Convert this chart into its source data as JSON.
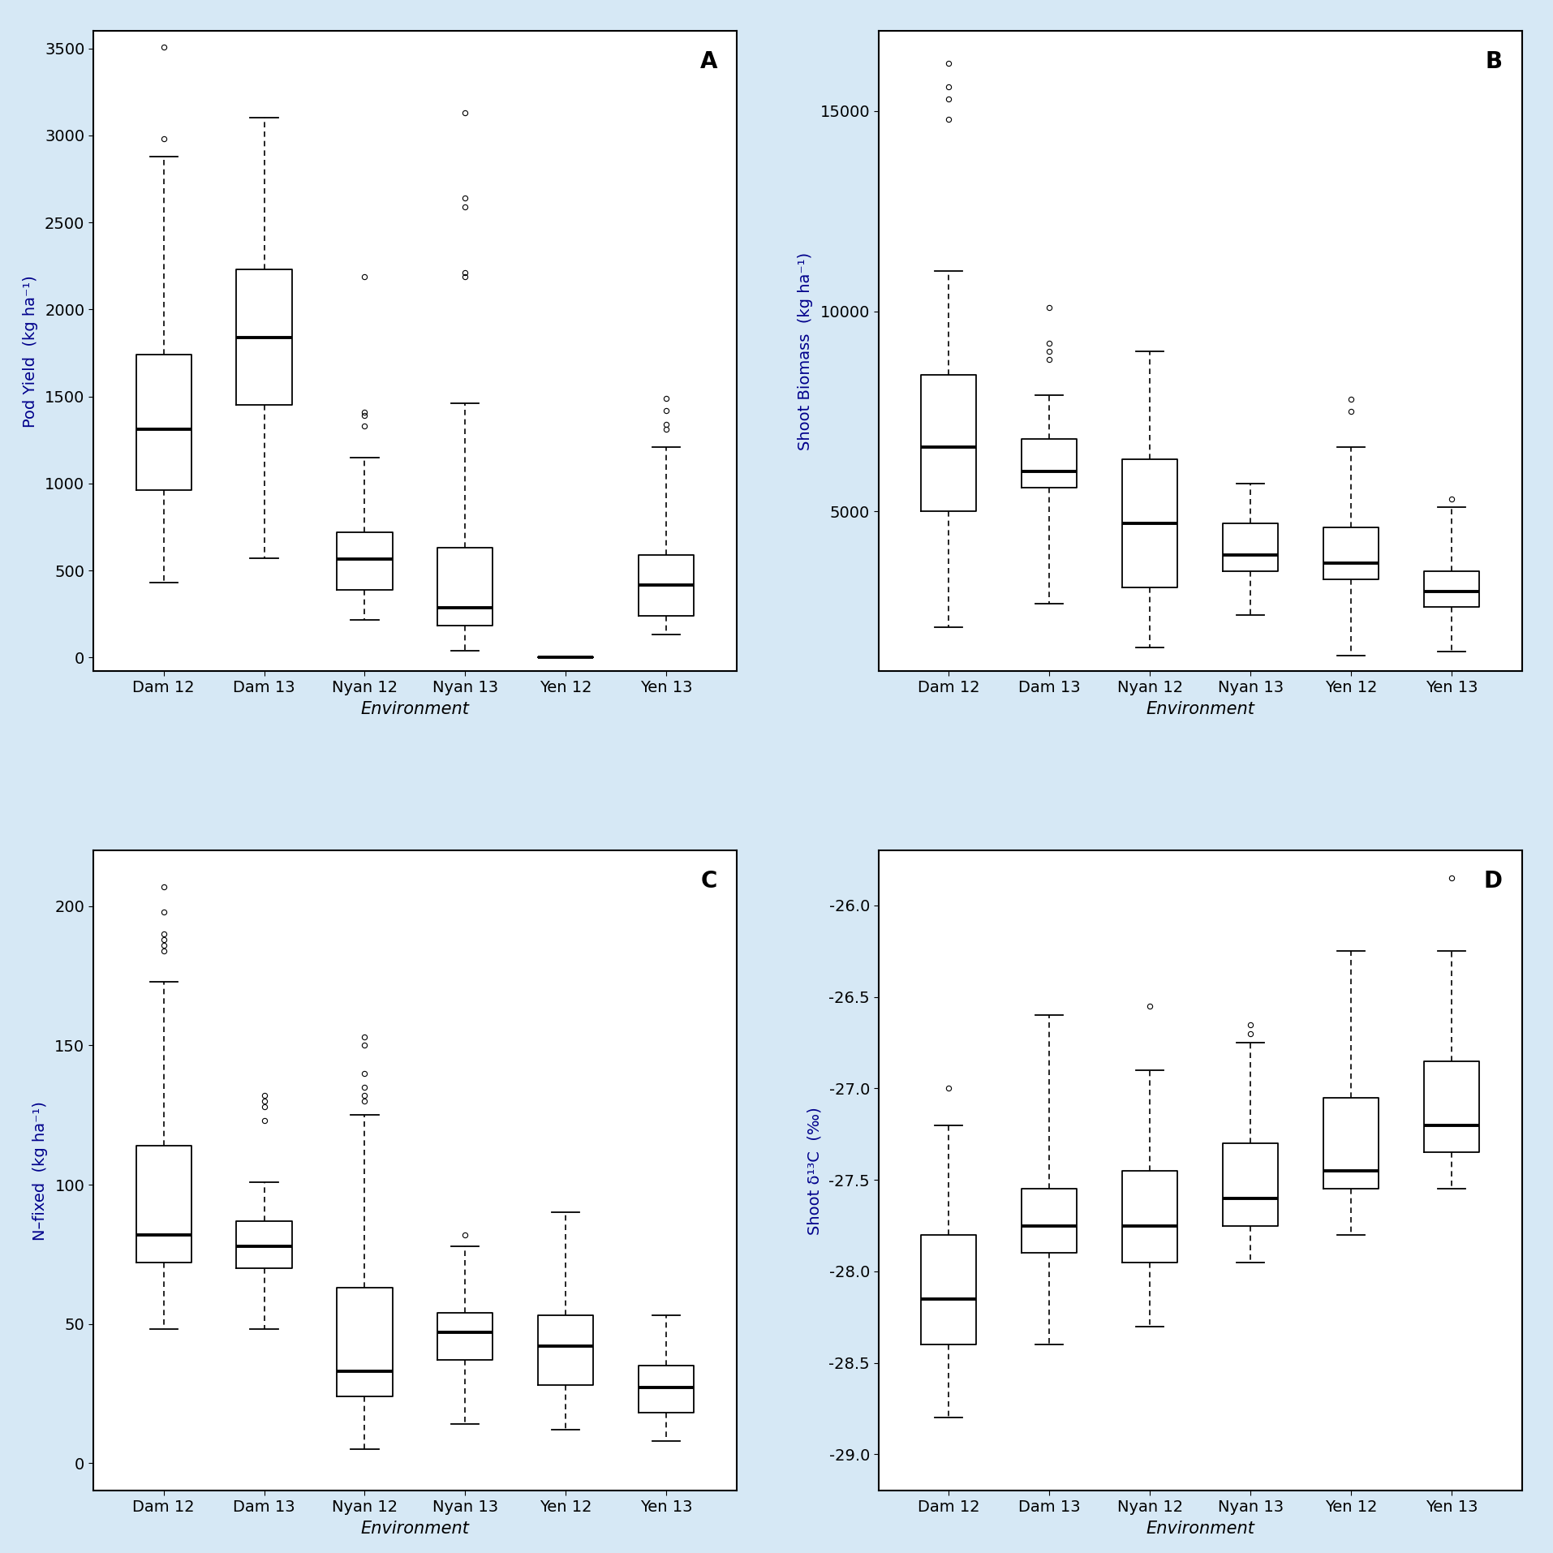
{
  "panel_labels": [
    "A",
    "B",
    "C",
    "D"
  ],
  "categories": [
    "Dam 12",
    "Dam 13",
    "Nyan 12",
    "Nyan 13",
    "Yen 12",
    "Yen 13"
  ],
  "xlabel": "Environment",
  "background_color": "#d6e8f5",
  "panel_bg": "#ffffff",
  "border_color": "#5a8ab0",
  "panels": {
    "A": {
      "ylabel": "Pod Yield  (kg ha⁻¹)",
      "ylim": [
        -80,
        3600
      ],
      "yticks": [
        0,
        500,
        1000,
        1500,
        2000,
        2500,
        3000,
        3500
      ],
      "boxes": [
        {
          "whislo": 430,
          "q1": 960,
          "med": 1310,
          "q3": 1740,
          "whishi": 2880,
          "fliers": [
            2980,
            3510
          ]
        },
        {
          "whislo": 570,
          "q1": 1450,
          "med": 1840,
          "q3": 2230,
          "whishi": 3100,
          "fliers": []
        },
        {
          "whislo": 215,
          "q1": 390,
          "med": 565,
          "q3": 720,
          "whishi": 1150,
          "fliers": [
            1330,
            1390,
            1410,
            2190
          ]
        },
        {
          "whislo": 40,
          "q1": 185,
          "med": 285,
          "q3": 630,
          "whishi": 1460,
          "fliers": [
            2190,
            2210,
            2590,
            2640,
            3130
          ]
        },
        {
          "whislo": 0,
          "q1": 0,
          "med": 0,
          "q3": 0,
          "whishi": 0,
          "fliers": []
        },
        {
          "whislo": 130,
          "q1": 240,
          "med": 415,
          "q3": 590,
          "whishi": 1210,
          "fliers": [
            1310,
            1340,
            1420,
            1490
          ]
        }
      ]
    },
    "B": {
      "ylabel": "Shoot Biomass  (kg ha⁻¹)",
      "ylim": [
        1000,
        17000
      ],
      "yticks": [
        5000,
        10000,
        15000
      ],
      "boxes": [
        {
          "whislo": 2100,
          "q1": 5000,
          "med": 6600,
          "q3": 8400,
          "whishi": 11000,
          "fliers": [
            14800,
            15300,
            15600,
            16200
          ]
        },
        {
          "whislo": 2700,
          "q1": 5600,
          "med": 6000,
          "q3": 6800,
          "whishi": 7900,
          "fliers": [
            8800,
            9000,
            9200,
            10100
          ]
        },
        {
          "whislo": 1600,
          "q1": 3100,
          "med": 4700,
          "q3": 6300,
          "whishi": 9000,
          "fliers": []
        },
        {
          "whislo": 2400,
          "q1": 3500,
          "med": 3900,
          "q3": 4700,
          "whishi": 5700,
          "fliers": []
        },
        {
          "whislo": 1400,
          "q1": 3300,
          "med": 3700,
          "q3": 4600,
          "whishi": 6600,
          "fliers": [
            7500,
            7800
          ]
        },
        {
          "whislo": 1500,
          "q1": 2600,
          "med": 3000,
          "q3": 3500,
          "whishi": 5100,
          "fliers": [
            5300
          ]
        }
      ]
    },
    "C": {
      "ylabel": "N–fixed  (kg ha⁻¹)",
      "ylim": [
        -10,
        220
      ],
      "yticks": [
        0,
        50,
        100,
        150,
        200
      ],
      "boxes": [
        {
          "whislo": 48,
          "q1": 72,
          "med": 82,
          "q3": 114,
          "whishi": 173,
          "fliers": [
            184,
            186,
            188,
            190,
            198,
            207
          ]
        },
        {
          "whislo": 48,
          "q1": 70,
          "med": 78,
          "q3": 87,
          "whishi": 101,
          "fliers": [
            123,
            128,
            130,
            132
          ]
        },
        {
          "whislo": 5,
          "q1": 24,
          "med": 33,
          "q3": 63,
          "whishi": 125,
          "fliers": [
            130,
            132,
            135,
            140,
            150,
            153
          ]
        },
        {
          "whislo": 14,
          "q1": 37,
          "med": 47,
          "q3": 54,
          "whishi": 78,
          "fliers": [
            82
          ]
        },
        {
          "whislo": 12,
          "q1": 28,
          "med": 42,
          "q3": 53,
          "whishi": 90,
          "fliers": []
        },
        {
          "whislo": 8,
          "q1": 18,
          "med": 27,
          "q3": 35,
          "whishi": 53,
          "fliers": []
        }
      ]
    },
    "D": {
      "ylabel": "Shoot δ¹³C  (‰)",
      "ylim": [
        -29.2,
        -25.7
      ],
      "yticks": [
        -29.0,
        -28.5,
        -28.0,
        -27.5,
        -27.0,
        -26.5,
        -26.0
      ],
      "boxes": [
        {
          "whislo": -28.8,
          "q1": -28.4,
          "med": -28.15,
          "q3": -27.8,
          "whishi": -27.2,
          "fliers": [
            -27.0
          ]
        },
        {
          "whislo": -28.4,
          "q1": -27.9,
          "med": -27.75,
          "q3": -27.55,
          "whishi": -26.6,
          "fliers": []
        },
        {
          "whislo": -28.3,
          "q1": -27.95,
          "med": -27.75,
          "q3": -27.45,
          "whishi": -26.9,
          "fliers": [
            -26.55
          ]
        },
        {
          "whislo": -27.95,
          "q1": -27.75,
          "med": -27.6,
          "q3": -27.3,
          "whishi": -26.75,
          "fliers": [
            -26.7,
            -26.65
          ]
        },
        {
          "whislo": -27.8,
          "q1": -27.55,
          "med": -27.45,
          "q3": -27.05,
          "whishi": -26.25,
          "fliers": []
        },
        {
          "whislo": -27.55,
          "q1": -27.35,
          "med": -27.2,
          "q3": -26.85,
          "whishi": -26.25,
          "fliers": [
            -25.85
          ]
        }
      ]
    }
  }
}
